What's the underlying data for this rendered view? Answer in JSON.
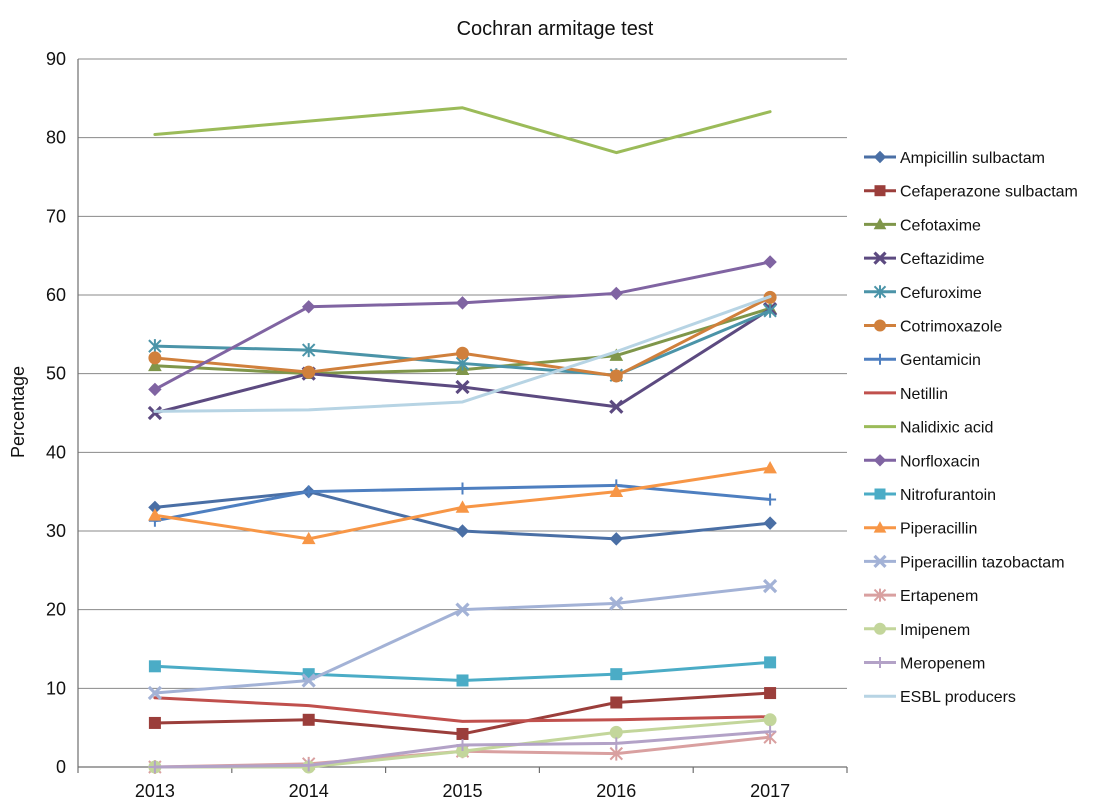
{
  "chart_data": {
    "type": "line",
    "title": "Cochran armitage test",
    "xlabel": "",
    "ylabel": "Percentage",
    "ylim": [
      0,
      90
    ],
    "y_ticks": [
      0,
      10,
      20,
      30,
      40,
      50,
      60,
      70,
      80,
      90
    ],
    "grid": true,
    "legend_position": "right",
    "categories": [
      "2013",
      "2014",
      "2015",
      "2016",
      "2017"
    ],
    "series": [
      {
        "name": "Ampicillin sulbactam",
        "color": "#4a6fa5",
        "marker": "diamond",
        "values": [
          33,
          35,
          30,
          29,
          31
        ]
      },
      {
        "name": "Cefaperazone sulbactam",
        "color": "#9b3e3b",
        "marker": "square",
        "values": [
          5.6,
          6,
          4.2,
          8.2,
          9.4
        ]
      },
      {
        "name": "Cefotaxime",
        "color": "#7f964a",
        "marker": "triangle",
        "values": [
          51,
          50,
          50.5,
          52.3,
          58.3
        ]
      },
      {
        "name": "Ceftazidime",
        "color": "#5c4a80",
        "marker": "x",
        "values": [
          45,
          50,
          48.3,
          45.8,
          58.2
        ]
      },
      {
        "name": "Cefuroxime",
        "color": "#4b94a8",
        "marker": "star",
        "values": [
          53.5,
          53,
          51.3,
          49.8,
          58
        ]
      },
      {
        "name": "Cotrimoxazole",
        "color": "#d0803c",
        "marker": "circle",
        "values": [
          52,
          50.2,
          52.6,
          49.7,
          59.7
        ]
      },
      {
        "name": "Gentamicin",
        "color": "#4e7fc0",
        "marker": "plus",
        "values": [
          31.3,
          35,
          35.4,
          35.8,
          34
        ]
      },
      {
        "name": "Netillin",
        "color": "#c0504d",
        "marker": "none",
        "values": [
          8.8,
          7.8,
          5.8,
          6,
          6.4
        ]
      },
      {
        "name": "Nalidixic acid",
        "color": "#9bbb59",
        "marker": "none",
        "values": [
          80.4,
          82.1,
          83.8,
          78.1,
          83.3
        ]
      },
      {
        "name": "Norfloxacin",
        "color": "#8064a2",
        "marker": "diamond",
        "values": [
          48,
          58.5,
          59,
          60.2,
          64.2
        ]
      },
      {
        "name": "Nitrofurantoin",
        "color": "#4bacc6",
        "marker": "square",
        "values": [
          12.8,
          11.8,
          11,
          11.8,
          13.3
        ]
      },
      {
        "name": "Piperacillin",
        "color": "#f79646",
        "marker": "triangle",
        "values": [
          32,
          29,
          33,
          35,
          38
        ]
      },
      {
        "name": "Piperacillin tazobactam",
        "color": "#a3b2d6",
        "marker": "x",
        "values": [
          9.4,
          11,
          20,
          20.8,
          23
        ]
      },
      {
        "name": "Ertapenem",
        "color": "#d9a0a0",
        "marker": "star",
        "values": [
          0,
          0.4,
          2,
          1.7,
          3.8
        ]
      },
      {
        "name": "Imipenem",
        "color": "#c3d69b",
        "marker": "circle",
        "values": [
          0,
          0,
          2,
          4.4,
          6
        ]
      },
      {
        "name": "Meropenem",
        "color": "#b3a2c7",
        "marker": "plus",
        "values": [
          0,
          0.2,
          2.8,
          3,
          4.5
        ]
      },
      {
        "name": "ESBL producers",
        "color": "#b7d4e4",
        "marker": "none",
        "values": [
          45.2,
          45.4,
          46.4,
          52.8,
          59.8
        ]
      }
    ]
  }
}
